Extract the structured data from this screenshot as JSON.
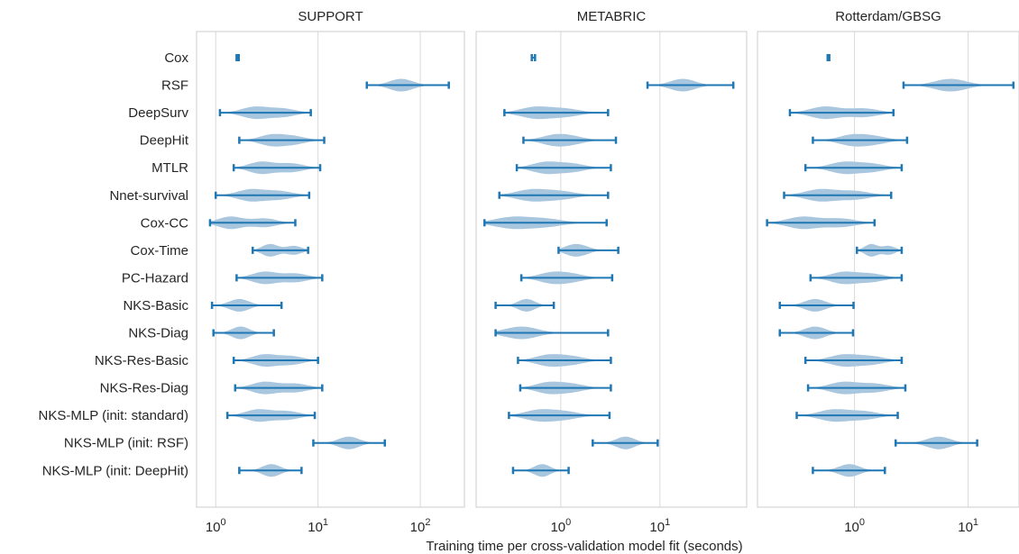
{
  "chart_data": {
    "type": "violin",
    "xlabel": "Training time per cross-validation model fit (seconds)",
    "xscale": "log",
    "grid": true,
    "colors": {
      "violin_fill": "#a9c6df",
      "whisker": "#1f77b4",
      "grid": "#d9d9d9",
      "frame": "#cccccc",
      "background": "#ffffff"
    },
    "categories": [
      "Cox",
      "RSF",
      "DeepSurv",
      "DeepHit",
      "MTLR",
      "Nnet-survival",
      "Cox-CC",
      "Cox-Time",
      "PC-Hazard",
      "NKS-Basic",
      "NKS-Diag",
      "NKS-Res-Basic",
      "NKS-Res-Diag",
      "NKS-MLP (init: standard)",
      "NKS-MLP (init: RSF)",
      "NKS-MLP (init: DeepHit)"
    ],
    "panels": [
      {
        "title": "SUPPORT",
        "xlim": [
          0.65,
          270
        ],
        "xticks": [
          {
            "value": 1,
            "base": "10",
            "exp": "0"
          },
          {
            "value": 10,
            "base": "10",
            "exp": "1"
          },
          {
            "value": 100,
            "base": "10",
            "exp": "2"
          }
        ],
        "rows": [
          {
            "min": 1.6,
            "max": 1.68,
            "modes": [
              1.64
            ]
          },
          {
            "min": 30,
            "max": 190,
            "modes": [
              65
            ]
          },
          {
            "min": 1.1,
            "max": 8.5,
            "modes": [
              2.4,
              4.5
            ]
          },
          {
            "min": 1.7,
            "max": 11.5,
            "modes": [
              3.5,
              5.8
            ]
          },
          {
            "min": 1.5,
            "max": 10.5,
            "modes": [
              2.8,
              5.5
            ]
          },
          {
            "min": 1.0,
            "max": 8.2,
            "modes": [
              2.2,
              4.2
            ]
          },
          {
            "min": 0.88,
            "max": 6.0,
            "modes": [
              1.4,
              3.0
            ]
          },
          {
            "min": 2.3,
            "max": 8.0,
            "modes": [
              3.4,
              5.8
            ]
          },
          {
            "min": 1.6,
            "max": 11.0,
            "modes": [
              3.0,
              6.0
            ]
          },
          {
            "min": 0.92,
            "max": 4.4,
            "modes": [
              1.7
            ]
          },
          {
            "min": 0.95,
            "max": 3.7,
            "modes": [
              1.75
            ]
          },
          {
            "min": 1.5,
            "max": 10.0,
            "modes": [
              3.0,
              5.5
            ]
          },
          {
            "min": 1.55,
            "max": 11.0,
            "modes": [
              3.0,
              6.0
            ]
          },
          {
            "min": 1.3,
            "max": 9.3,
            "modes": [
              2.6,
              5.0
            ]
          },
          {
            "min": 9.0,
            "max": 45,
            "modes": [
              20
            ]
          },
          {
            "min": 1.7,
            "max": 6.9,
            "modes": [
              3.5
            ]
          }
        ]
      },
      {
        "title": "METABRIC",
        "xlim": [
          0.14,
          75
        ],
        "xticks": [
          {
            "value": 1,
            "base": "10",
            "exp": "0"
          },
          {
            "value": 10,
            "base": "10",
            "exp": "1"
          }
        ],
        "rows": [
          {
            "min": 0.51,
            "max": 0.55,
            "modes": [
              0.53
            ]
          },
          {
            "min": 7.5,
            "max": 55,
            "modes": [
              17
            ]
          },
          {
            "min": 0.27,
            "max": 3.0,
            "modes": [
              0.55,
              1.1
            ]
          },
          {
            "min": 0.42,
            "max": 3.6,
            "modes": [
              0.85,
              1.3
            ]
          },
          {
            "min": 0.36,
            "max": 3.2,
            "modes": [
              0.7,
              1.3
            ]
          },
          {
            "min": 0.24,
            "max": 3.0,
            "modes": [
              0.5,
              1.0
            ]
          },
          {
            "min": 0.17,
            "max": 2.9,
            "modes": [
              0.32,
              0.7
            ]
          },
          {
            "min": 0.95,
            "max": 3.8,
            "modes": [
              1.3,
              1.7
            ]
          },
          {
            "min": 0.4,
            "max": 3.3,
            "modes": [
              0.8,
              1.3
            ]
          },
          {
            "min": 0.22,
            "max": 0.85,
            "modes": [
              0.45
            ]
          },
          {
            "min": 0.22,
            "max": 3.0,
            "modes": [
              0.4
            ]
          },
          {
            "min": 0.37,
            "max": 3.2,
            "modes": [
              0.75,
              1.3
            ]
          },
          {
            "min": 0.39,
            "max": 3.2,
            "modes": [
              0.75,
              1.3
            ]
          },
          {
            "min": 0.3,
            "max": 3.1,
            "modes": [
              0.6,
              1.1
            ]
          },
          {
            "min": 2.1,
            "max": 9.5,
            "modes": [
              4.5
            ]
          },
          {
            "min": 0.33,
            "max": 1.2,
            "modes": [
              0.65
            ]
          }
        ]
      },
      {
        "title": "Rotterdam/GBSG",
        "xlim": [
          0.14,
          28
        ],
        "xticks": [
          {
            "value": 1,
            "base": "10",
            "exp": "0"
          },
          {
            "value": 10,
            "base": "10",
            "exp": "1"
          }
        ],
        "rows": [
          {
            "min": 0.58,
            "max": 0.6,
            "modes": [
              0.59
            ]
          },
          {
            "min": 2.7,
            "max": 25,
            "modes": [
              7
            ]
          },
          {
            "min": 0.27,
            "max": 2.2,
            "modes": [
              0.55,
              1.2
            ]
          },
          {
            "min": 0.43,
            "max": 2.9,
            "modes": [
              0.95,
              1.5
            ]
          },
          {
            "min": 0.37,
            "max": 2.6,
            "modes": [
              0.8,
              1.4
            ]
          },
          {
            "min": 0.24,
            "max": 2.1,
            "modes": [
              0.5,
              1.0
            ]
          },
          {
            "min": 0.17,
            "max": 1.5,
            "modes": [
              0.35,
              0.75
            ]
          },
          {
            "min": 1.05,
            "max": 2.6,
            "modes": [
              1.4,
              2.0
            ]
          },
          {
            "min": 0.41,
            "max": 2.6,
            "modes": [
              0.8,
              1.4
            ]
          },
          {
            "min": 0.22,
            "max": 0.98,
            "modes": [
              0.45
            ]
          },
          {
            "min": 0.22,
            "max": 0.97,
            "modes": [
              0.45
            ]
          },
          {
            "min": 0.37,
            "max": 2.6,
            "modes": [
              0.8,
              1.4
            ]
          },
          {
            "min": 0.39,
            "max": 2.8,
            "modes": [
              0.8,
              1.5
            ]
          },
          {
            "min": 0.31,
            "max": 2.4,
            "modes": [
              0.65,
              1.2
            ]
          },
          {
            "min": 2.3,
            "max": 12,
            "modes": [
              5.5
            ]
          },
          {
            "min": 0.43,
            "max": 1.85,
            "modes": [
              0.9
            ]
          }
        ]
      }
    ]
  }
}
